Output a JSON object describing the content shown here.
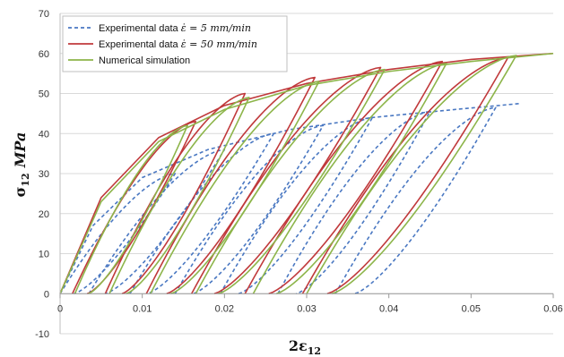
{
  "chart_data": {
    "type": "line",
    "xlabel_main": "2ε",
    "xlabel_sub": "12",
    "ylabel_main": "σ",
    "ylabel_sub": "12",
    "ylabel_unit": "MPa",
    "xlim": [
      0,
      0.06
    ],
    "ylim": [
      -10,
      70
    ],
    "x_ticks": [
      0,
      0.01,
      0.02,
      0.03,
      0.04,
      0.05,
      0.06
    ],
    "x_tick_labels": [
      "0",
      "0.01",
      "0.02",
      "0.03",
      "0.04",
      "0.05",
      "0.06"
    ],
    "y_ticks": [
      -10,
      0,
      10,
      20,
      30,
      40,
      50,
      60,
      70
    ],
    "y_tick_labels": [
      "-10",
      "0",
      "10",
      "20",
      "30",
      "40",
      "50",
      "60",
      "70"
    ],
    "grid": "horizontal",
    "legend_placement": "top-left",
    "legend": [
      {
        "key": "exp5",
        "text": "Experimental data ",
        "math": "ε̇ = 5 mm/min"
      },
      {
        "key": "exp50",
        "text": "Experimental data ",
        "math": "ε̇ = 50 mm/min"
      },
      {
        "key": "sim",
        "text": "Numerical simulation",
        "math": ""
      }
    ],
    "series": [
      {
        "key": "exp5",
        "color": "#4a78c2",
        "dash": "4,3",
        "cycles": [
          {
            "x0": 0.0,
            "x1": 0.014,
            "peak": 30.0
          },
          {
            "x0": 0.0035,
            "x1": 0.02,
            "peak": 36.0
          },
          {
            "x0": 0.0085,
            "x1": 0.026,
            "peak": 40.0
          },
          {
            "x0": 0.014,
            "x1": 0.032,
            "peak": 42.0
          },
          {
            "x0": 0.0195,
            "x1": 0.038,
            "peak": 44.0
          },
          {
            "x0": 0.0265,
            "x1": 0.045,
            "peak": 45.5
          },
          {
            "x0": 0.0335,
            "x1": 0.053,
            "peak": 46.5
          }
        ],
        "envelope": {
          "x": [
            0.0,
            0.004,
            0.01,
            0.018,
            0.028,
            0.038,
            0.048,
            0.056
          ],
          "y": [
            0.0,
            17,
            29,
            36,
            41,
            44,
            46,
            47.5
          ]
        }
      },
      {
        "key": "exp50",
        "color": "#c0393b",
        "dash": "",
        "cycles": [
          {
            "x0": 0.0015,
            "x1": 0.0165,
            "peak": 43.0
          },
          {
            "x0": 0.0055,
            "x1": 0.0225,
            "peak": 50.0
          },
          {
            "x0": 0.0105,
            "x1": 0.031,
            "peak": 54.0
          },
          {
            "x0": 0.016,
            "x1": 0.039,
            "peak": 56.5
          },
          {
            "x0": 0.0225,
            "x1": 0.0465,
            "peak": 58.0
          },
          {
            "x0": 0.0295,
            "x1": 0.0545,
            "peak": 59.0
          }
        ],
        "envelope": {
          "x": [
            0.0,
            0.005,
            0.012,
            0.02,
            0.03,
            0.04,
            0.05,
            0.06
          ],
          "y": [
            0.0,
            24,
            39,
            47,
            52.5,
            56,
            58.5,
            60
          ]
        }
      },
      {
        "key": "sim",
        "color": "#8db54a",
        "dash": "",
        "cycles": [
          {
            "x0": 0.0018,
            "x1": 0.0155,
            "peak": 42.0
          },
          {
            "x0": 0.006,
            "x1": 0.023,
            "peak": 49.0
          },
          {
            "x0": 0.011,
            "x1": 0.0315,
            "peak": 53.0
          },
          {
            "x0": 0.0165,
            "x1": 0.0395,
            "peak": 56.0
          },
          {
            "x0": 0.0235,
            "x1": 0.047,
            "peak": 57.5
          },
          {
            "x0": 0.03,
            "x1": 0.0555,
            "peak": 59.5
          }
        ],
        "envelope": {
          "x": [
            0.0,
            0.005,
            0.012,
            0.02,
            0.03,
            0.04,
            0.05,
            0.06
          ],
          "y": [
            0.0,
            23,
            38,
            46,
            52,
            55.5,
            58,
            60
          ]
        }
      }
    ]
  }
}
